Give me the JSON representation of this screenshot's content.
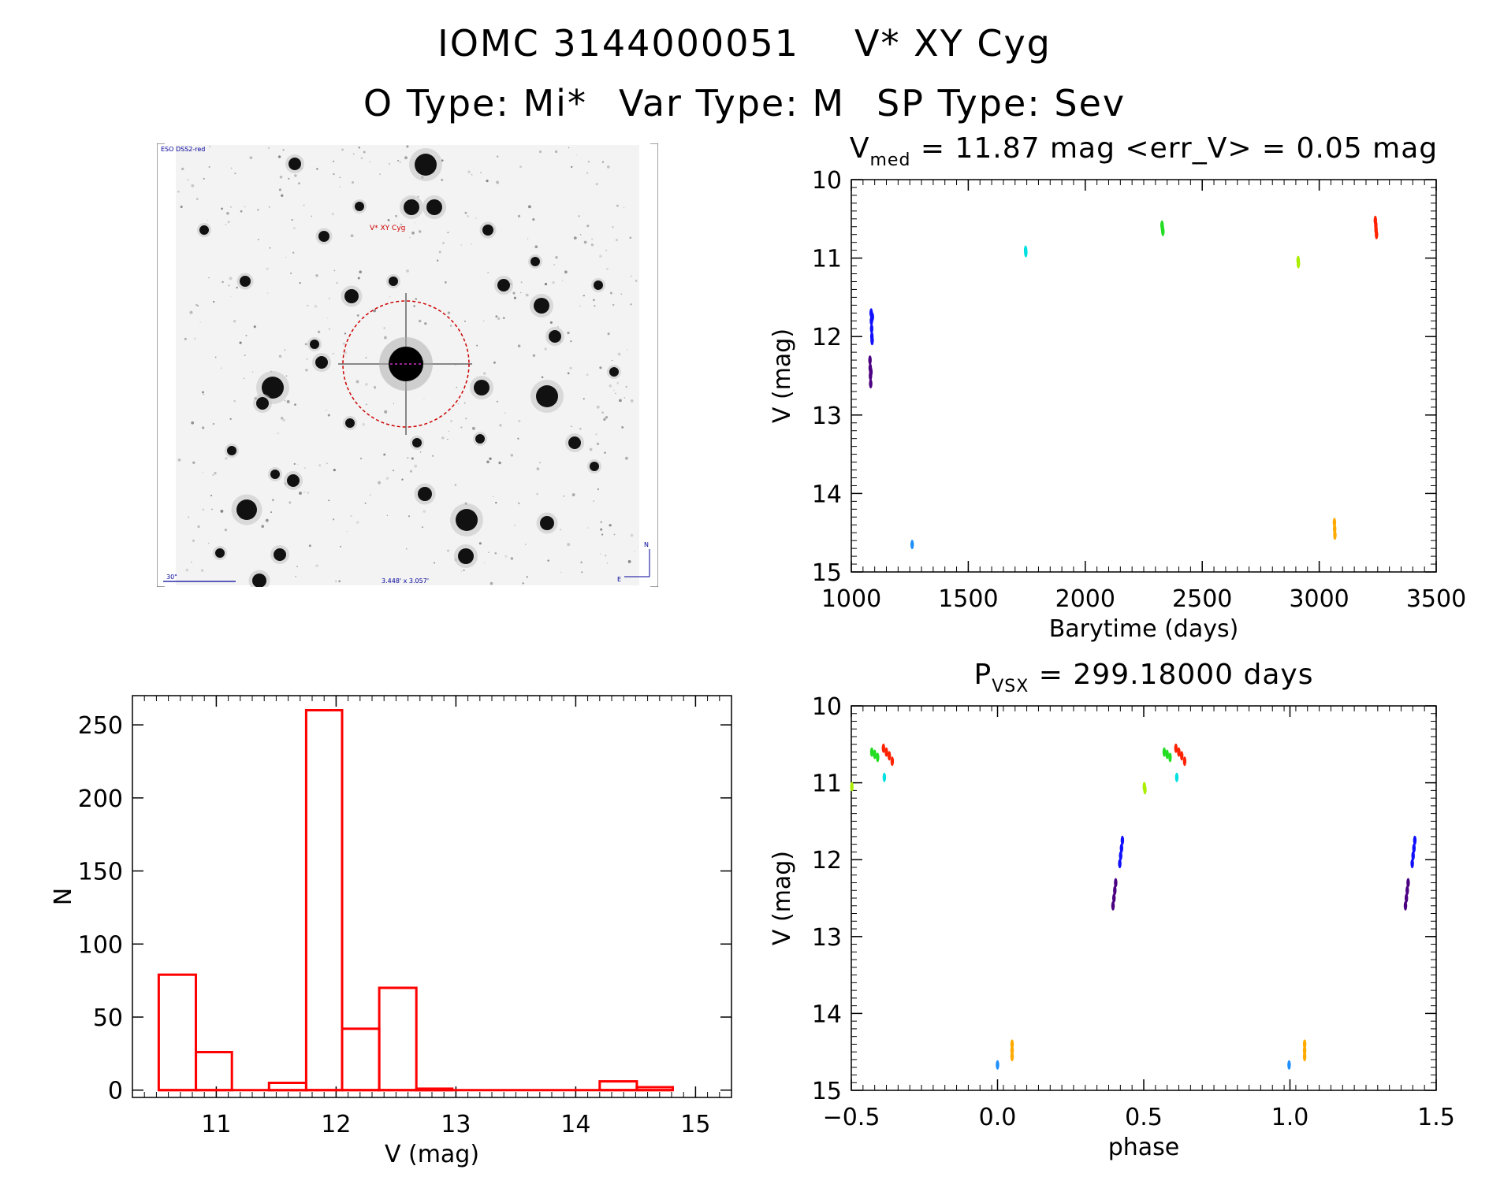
{
  "header": {
    "object_id": "IOMC 3144000051",
    "star_name": "V* XY Cyg",
    "otype_label": "O Type: Mi*",
    "vartype_label": "Var Type: M",
    "sptype_label": "SP Type: Sev"
  },
  "finder_chart": {
    "survey_label": "ESO DSS2-red",
    "target_label": "V* XY Cyg",
    "scale_label": "30\"",
    "fov_label": "3.448' x 3.057'",
    "north_label": "N",
    "east_label": "E",
    "colors": {
      "circle": "#cc0000",
      "labels": "#000099",
      "target": "#cc0000"
    }
  },
  "colors": {
    "hist": "#ff0000",
    "cam_purple": "#4b0082",
    "cam_blue": "#1010ff",
    "cam_lightblue": "#1e8fff",
    "cam_cyan": "#00e0e0",
    "cam_green": "#22dd22",
    "cam_lime": "#aaee00",
    "cam_orange": "#ffaa00",
    "cam_red": "#ff2200"
  },
  "chart_data": [
    {
      "type": "scatter",
      "id": "lightcurve",
      "title_main": "V",
      "title_sub": "med",
      "title_rest": " = 11.87 mag <err_V> = 0.05 mag",
      "xlabel": "Barytime (days)",
      "ylabel": "V (mag)",
      "xlim": [
        1000,
        3500
      ],
      "ylim": [
        15,
        10
      ],
      "xticks": [
        1000,
        1500,
        2000,
        2500,
        3000,
        3500
      ],
      "yticks": [
        10,
        11,
        12,
        13,
        14,
        15
      ],
      "series": [
        {
          "name": "purple",
          "color": "cam_purple",
          "points": [
            [
              1080,
              12.3
            ],
            [
              1081,
              12.4
            ],
            [
              1082,
              12.5
            ],
            [
              1083,
              12.6
            ],
            [
              1084,
              12.45
            ]
          ]
        },
        {
          "name": "blue",
          "color": "cam_blue",
          "points": [
            [
              1085,
              11.7
            ],
            [
              1086,
              11.8
            ],
            [
              1087,
              11.9
            ],
            [
              1088,
              12.0
            ],
            [
              1089,
              12.05
            ],
            [
              1090,
              11.75
            ]
          ]
        },
        {
          "name": "lightblue",
          "color": "cam_lightblue",
          "points": [
            [
              1260,
              14.65
            ]
          ]
        },
        {
          "name": "cyan",
          "color": "cam_cyan",
          "points": [
            [
              1745,
              10.9
            ],
            [
              1746,
              10.93
            ]
          ]
        },
        {
          "name": "green",
          "color": "cam_green",
          "points": [
            [
              2328,
              10.58
            ],
            [
              2330,
              10.62
            ],
            [
              2332,
              10.66
            ]
          ]
        },
        {
          "name": "lime",
          "color": "cam_lime",
          "points": [
            [
              2910,
              11.03
            ],
            [
              2911,
              11.07
            ]
          ]
        },
        {
          "name": "orange",
          "color": "cam_orange",
          "points": [
            [
              3065,
              14.37
            ],
            [
              3066,
              14.45
            ],
            [
              3067,
              14.53
            ]
          ]
        },
        {
          "name": "red",
          "color": "cam_red",
          "points": [
            [
              3240,
              10.52
            ],
            [
              3242,
              10.58
            ],
            [
              3243,
              10.64
            ],
            [
              3245,
              10.7
            ]
          ]
        }
      ]
    },
    {
      "type": "bar",
      "id": "histogram",
      "xlabel": "V (mag)",
      "ylabel": "N",
      "xlim": [
        10.3,
        15.3
      ],
      "ylim": [
        -5,
        270
      ],
      "xticks": [
        11,
        12,
        13,
        14,
        15
      ],
      "yticks": [
        0,
        50,
        100,
        150,
        200,
        250
      ],
      "bins": [
        {
          "x0": 10.52,
          "x1": 10.83,
          "count": 79
        },
        {
          "x0": 10.83,
          "x1": 11.13,
          "count": 26
        },
        {
          "x0": 11.13,
          "x1": 11.44,
          "count": 0
        },
        {
          "x0": 11.44,
          "x1": 11.75,
          "count": 5
        },
        {
          "x0": 11.75,
          "x1": 12.05,
          "count": 260
        },
        {
          "x0": 12.05,
          "x1": 12.36,
          "count": 42
        },
        {
          "x0": 12.36,
          "x1": 12.67,
          "count": 70
        },
        {
          "x0": 12.67,
          "x1": 12.97,
          "count": 1
        },
        {
          "x0": 12.97,
          "x1": 13.28,
          "count": 0
        },
        {
          "x0": 13.28,
          "x1": 13.59,
          "count": 0
        },
        {
          "x0": 13.59,
          "x1": 13.89,
          "count": 0
        },
        {
          "x0": 13.89,
          "x1": 14.2,
          "count": 0
        },
        {
          "x0": 14.2,
          "x1": 14.51,
          "count": 6
        },
        {
          "x0": 14.51,
          "x1": 14.81,
          "count": 2
        }
      ]
    },
    {
      "type": "scatter",
      "id": "phased",
      "title_main": "P",
      "title_sub": "VSX",
      "title_rest": " = 299.18000 days",
      "xlabel": "phase",
      "ylabel": "V (mag)",
      "xlim": [
        -0.5,
        1.5
      ],
      "ylim": [
        15,
        10
      ],
      "xticks": [
        -0.5,
        0.0,
        0.5,
        1.0,
        1.5
      ],
      "xtick_labels": [
        "−0.5",
        "0.0",
        "0.5",
        "1.0",
        "1.5"
      ],
      "yticks": [
        10,
        11,
        12,
        13,
        14,
        15
      ],
      "series": [
        {
          "name": "purple",
          "color": "cam_purple",
          "points": [
            [
              0.395,
              12.6
            ],
            [
              0.398,
              12.5
            ],
            [
              0.401,
              12.4
            ],
            [
              0.404,
              12.3
            ],
            [
              1.395,
              12.6
            ],
            [
              1.398,
              12.5
            ],
            [
              1.401,
              12.4
            ],
            [
              1.404,
              12.3
            ]
          ]
        },
        {
          "name": "blue",
          "color": "cam_blue",
          "points": [
            [
              0.418,
              12.05
            ],
            [
              0.421,
              11.95
            ],
            [
              0.424,
              11.85
            ],
            [
              0.427,
              11.75
            ],
            [
              1.418,
              12.05
            ],
            [
              1.421,
              11.95
            ],
            [
              1.424,
              11.85
            ],
            [
              1.427,
              11.75
            ]
          ]
        },
        {
          "name": "lightblue",
          "color": "cam_lightblue",
          "points": [
            [
              0.0,
              14.67
            ],
            [
              0.997,
              14.67
            ]
          ]
        },
        {
          "name": "cyan",
          "color": "cam_cyan",
          "points": [
            [
              -0.387,
              10.93
            ],
            [
              0.613,
              10.93
            ]
          ]
        },
        {
          "name": "green",
          "color": "cam_green",
          "points": [
            [
              -0.43,
              10.6
            ],
            [
              -0.42,
              10.63
            ],
            [
              -0.41,
              10.67
            ],
            [
              0.57,
              10.6
            ],
            [
              0.58,
              10.63
            ],
            [
              0.59,
              10.67
            ]
          ]
        },
        {
          "name": "lime",
          "color": "cam_lime",
          "points": [
            [
              -0.498,
              11.05
            ],
            [
              0.502,
              11.05
            ],
            [
              0.504,
              11.09
            ]
          ]
        },
        {
          "name": "orange",
          "color": "cam_orange",
          "points": [
            [
              0.05,
              14.4
            ],
            [
              0.05,
              14.48
            ],
            [
              0.05,
              14.56
            ],
            [
              1.05,
              14.4
            ],
            [
              1.05,
              14.48
            ],
            [
              1.05,
              14.56
            ]
          ]
        },
        {
          "name": "red",
          "color": "cam_red",
          "points": [
            [
              -0.39,
              10.55
            ],
            [
              -0.38,
              10.6
            ],
            [
              -0.37,
              10.65
            ],
            [
              -0.36,
              10.72
            ],
            [
              0.61,
              10.55
            ],
            [
              0.62,
              10.6
            ],
            [
              0.63,
              10.65
            ],
            [
              0.64,
              10.72
            ]
          ]
        }
      ]
    }
  ]
}
